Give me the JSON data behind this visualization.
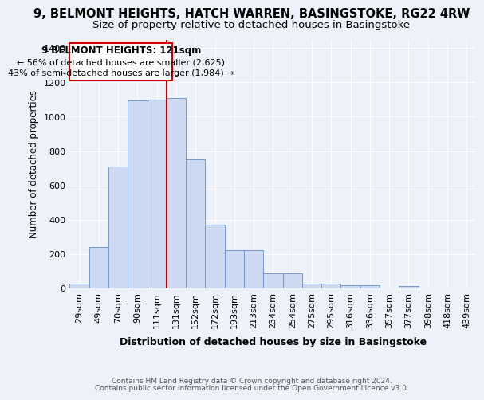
{
  "title": "9, BELMONT HEIGHTS, HATCH WARREN, BASINGSTOKE, RG22 4RW",
  "subtitle": "Size of property relative to detached houses in Basingstoke",
  "xlabel": "Distribution of detached houses by size in Basingstoke",
  "ylabel": "Number of detached properties",
  "bar_labels": [
    "29sqm",
    "49sqm",
    "70sqm",
    "90sqm",
    "111sqm",
    "131sqm",
    "152sqm",
    "172sqm",
    "193sqm",
    "213sqm",
    "234sqm",
    "254sqm",
    "275sqm",
    "295sqm",
    "316sqm",
    "336sqm",
    "357sqm",
    "377sqm",
    "398sqm",
    "418sqm",
    "439sqm"
  ],
  "bar_values": [
    30,
    240,
    710,
    1095,
    1100,
    1110,
    750,
    370,
    225,
    225,
    90,
    90,
    30,
    30,
    20,
    18,
    0,
    12,
    0,
    0,
    0
  ],
  "bar_color": "#ccd9f0",
  "bar_edge_color": "#7799cc",
  "ylim": [
    0,
    1450
  ],
  "yticks": [
    0,
    200,
    400,
    600,
    800,
    1000,
    1200,
    1400
  ],
  "property_size": 121,
  "property_label": "9 BELMONT HEIGHTS: 121sqm",
  "annotation_line1": "← 56% of detached houses are smaller (2,625)",
  "annotation_line2": "43% of semi-detached houses are larger (1,984) →",
  "vline_color": "#cc0000",
  "annotation_box_color": "#cc0000",
  "bg_color": "#edf2fa",
  "grid_color": "#ffffff",
  "footer_line1": "Contains HM Land Registry data © Crown copyright and database right 2024.",
  "footer_line2": "Contains public sector information licensed under the Open Government Licence v3.0.",
  "title_fontsize": 10.5,
  "subtitle_fontsize": 9.5,
  "bar_width": 1.0
}
